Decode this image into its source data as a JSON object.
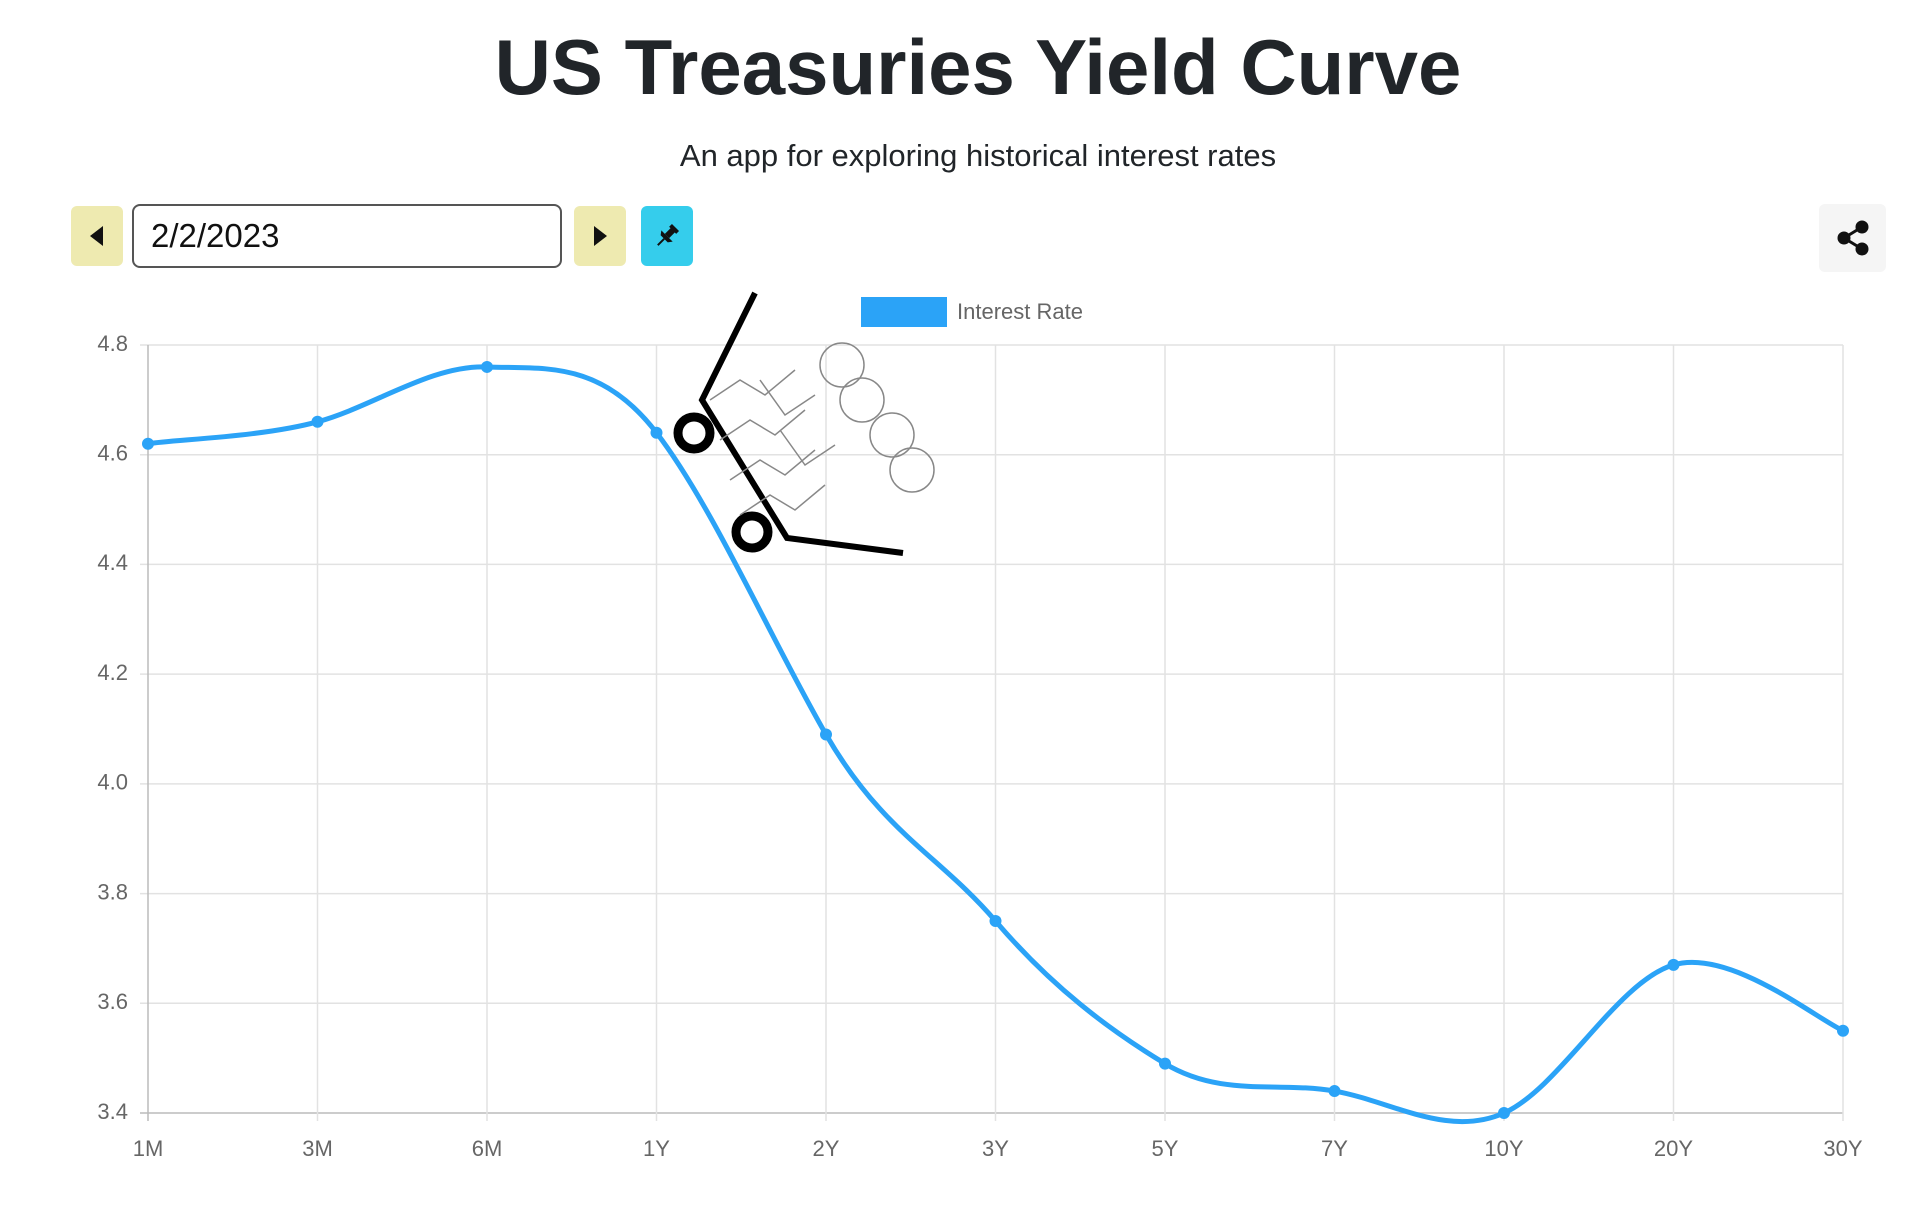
{
  "header": {
    "title": "US Treasuries Yield Curve",
    "subtitle": "An app for exploring historical interest rates"
  },
  "controls": {
    "date": "2/2/2023"
  },
  "chart_data": {
    "type": "line",
    "categories": [
      "1M",
      "3M",
      "6M",
      "1Y",
      "2Y",
      "3Y",
      "5Y",
      "7Y",
      "10Y",
      "20Y",
      "30Y"
    ],
    "series": [
      {
        "name": "Interest Rate",
        "color": "#2ba3f7",
        "values": [
          4.62,
          4.66,
          4.76,
          4.64,
          4.09,
          3.75,
          3.49,
          3.44,
          3.4,
          3.67,
          3.55
        ]
      }
    ],
    "ylim": [
      3.4,
      4.8
    ],
    "yticks": [
      3.4,
      3.6,
      3.8,
      {
        "value": 4,
        "label": "4.0"
      },
      4.2,
      4.4,
      4.6,
      4.8
    ],
    "grid": true
  }
}
